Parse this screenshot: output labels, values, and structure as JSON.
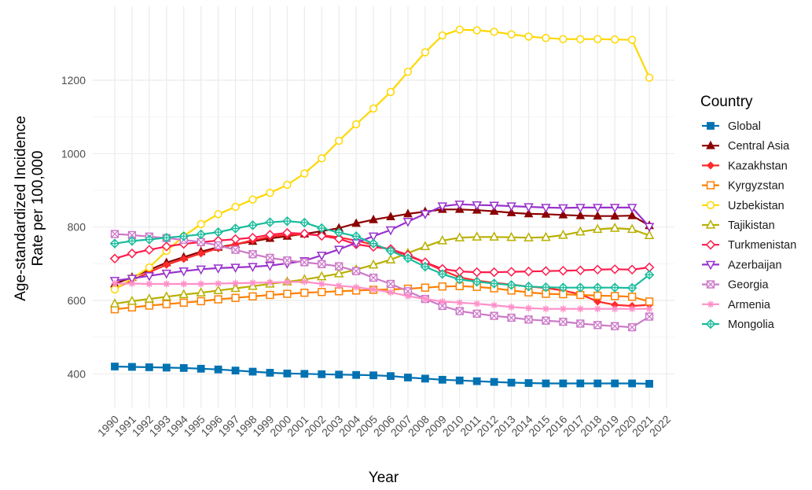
{
  "chart_data": {
    "type": "line",
    "xlabel": "Year",
    "ylabel": "Age-standardized Incidence\nRate per 100,000",
    "legend_title": "Country",
    "legend_position": "right",
    "grid": true,
    "xlim": [
      1990,
      2022
    ],
    "ylim": [
      330,
      1380
    ],
    "x_ticks": [
      1990,
      1991,
      1992,
      1993,
      1994,
      1995,
      1996,
      1997,
      1998,
      1999,
      2000,
      2001,
      2002,
      2003,
      2004,
      2005,
      2006,
      2007,
      2008,
      2009,
      2010,
      2011,
      2012,
      2013,
      2014,
      2015,
      2016,
      2017,
      2018,
      2019,
      2020,
      2021,
      2022
    ],
    "y_ticks": [
      400,
      600,
      800,
      1000,
      1200
    ],
    "x": [
      1990,
      1991,
      1992,
      1993,
      1994,
      1995,
      1996,
      1997,
      1998,
      1999,
      2000,
      2001,
      2002,
      2003,
      2004,
      2005,
      2006,
      2007,
      2008,
      2009,
      2010,
      2011,
      2012,
      2013,
      2014,
      2015,
      2016,
      2017,
      2018,
      2019,
      2020,
      2021
    ],
    "series": [
      {
        "name": "Global",
        "color": "#0072B2",
        "marker": "square-filled",
        "values": [
          420,
          419,
          418,
          417,
          416,
          414,
          412,
          409,
          406,
          403,
          401,
          400,
          399,
          398,
          397,
          396,
          394,
          390,
          387,
          384,
          382,
          380,
          378,
          376,
          375,
          374,
          374,
          374,
          374,
          374,
          374,
          373
        ]
      },
      {
        "name": "Central Asia",
        "color": "#8B0000",
        "marker": "triangle-filled",
        "values": [
          645,
          663,
          683,
          703,
          718,
          733,
          745,
          753,
          761,
          769,
          775,
          781,
          789,
          797,
          810,
          820,
          828,
          836,
          842,
          848,
          848,
          846,
          843,
          839,
          836,
          835,
          833,
          831,
          830,
          830,
          831,
          804
        ]
      },
      {
        "name": "Kazakhstan",
        "color": "#FF2A2A",
        "marker": "diamond-filled",
        "values": [
          632,
          655,
          677,
          697,
          713,
          728,
          742,
          753,
          764,
          774,
          779,
          780,
          778,
          772,
          763,
          752,
          738,
          722,
          703,
          682,
          663,
          654,
          648,
          643,
          638,
          634,
          627,
          617,
          597,
          588,
          585,
          588
        ]
      },
      {
        "name": "Kyrgyzstan",
        "color": "#FF7F00",
        "marker": "square-open",
        "values": [
          576,
          581,
          586,
          590,
          594,
          598,
          603,
          607,
          611,
          615,
          618,
          621,
          623,
          625,
          627,
          629,
          630,
          632,
          635,
          638,
          639,
          637,
          633,
          627,
          622,
          618,
          617,
          615,
          613,
          612,
          610,
          597
        ]
      },
      {
        "name": "Uzbekistan",
        "color": "#FFD700",
        "marker": "circle-open",
        "values": [
          630,
          660,
          690,
          735,
          775,
          808,
          835,
          855,
          875,
          893,
          915,
          946,
          987,
          1035,
          1080,
          1123,
          1168,
          1223,
          1276,
          1322,
          1338,
          1336,
          1332,
          1325,
          1319,
          1315,
          1312,
          1312,
          1312,
          1311,
          1310,
          1207
        ]
      },
      {
        "name": "Tajikistan",
        "color": "#B8B000",
        "marker": "triangle-open",
        "values": [
          591,
          598,
          604,
          610,
          616,
          621,
          627,
          633,
          639,
          645,
          651,
          657,
          665,
          673,
          684,
          697,
          711,
          729,
          747,
          763,
          771,
          773,
          773,
          772,
          771,
          772,
          778,
          787,
          794,
          797,
          794,
          777
        ]
      },
      {
        "name": "Turkmenistan",
        "color": "#FF1A4B",
        "marker": "diamond-open",
        "values": [
          714,
          728,
          738,
          747,
          754,
          759,
          763,
          767,
          771,
          779,
          784,
          782,
          776,
          768,
          753,
          746,
          740,
          724,
          704,
          686,
          679,
          677,
          677,
          678,
          679,
          680,
          681,
          682,
          684,
          685,
          684,
          690
        ]
      },
      {
        "name": "Azerbaijan",
        "color": "#9932CC",
        "marker": "triangle-down-open",
        "values": [
          654,
          660,
          667,
          674,
          680,
          685,
          688,
          690,
          692,
          695,
          701,
          708,
          723,
          739,
          757,
          775,
          792,
          815,
          836,
          857,
          862,
          860,
          859,
          857,
          855,
          853,
          852,
          853,
          853,
          853,
          853,
          801
        ]
      },
      {
        "name": "Georgia",
        "color": "#CC79C8",
        "marker": "square-cross",
        "values": [
          781,
          778,
          774,
          770,
          765,
          759,
          750,
          738,
          726,
          716,
          709,
          704,
          699,
          693,
          680,
          662,
          645,
          625,
          604,
          585,
          571,
          564,
          558,
          553,
          548,
          545,
          542,
          537,
          533,
          530,
          527,
          556
        ]
      },
      {
        "name": "Armenia",
        "color": "#FF8FC8",
        "marker": "asterisk",
        "values": [
          646,
          646,
          645,
          645,
          645,
          645,
          646,
          647,
          648,
          649,
          650,
          651,
          645,
          640,
          636,
          630,
          622,
          612,
          604,
          597,
          594,
          591,
          587,
          582,
          579,
          577,
          577,
          577,
          577,
          577,
          577,
          577
        ]
      },
      {
        "name": "Mongolia",
        "color": "#1ABC9C",
        "marker": "diamond-cross",
        "values": [
          755,
          762,
          766,
          771,
          775,
          780,
          786,
          796,
          805,
          813,
          816,
          812,
          797,
          785,
          775,
          755,
          735,
          715,
          692,
          672,
          657,
          651,
          646,
          642,
          638,
          636,
          635,
          635,
          635,
          635,
          634,
          670
        ]
      }
    ]
  }
}
